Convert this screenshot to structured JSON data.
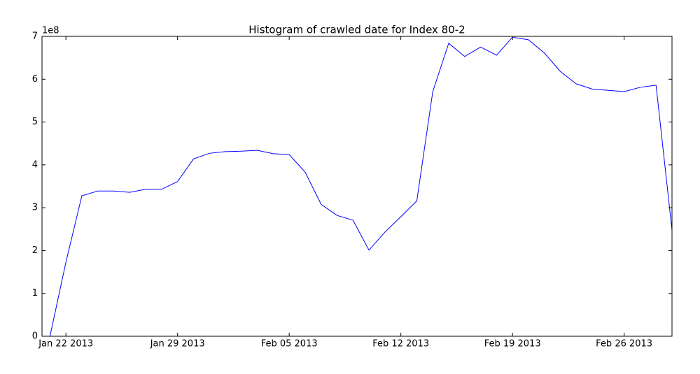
{
  "chart_data": {
    "type": "line",
    "title": "Histogram of crawled date for Index 80-2",
    "y_offset_label": "1e8",
    "x": [
      "2013-01-21",
      "2013-01-22",
      "2013-01-23",
      "2013-01-24",
      "2013-01-25",
      "2013-01-26",
      "2013-01-27",
      "2013-01-28",
      "2013-01-29",
      "2013-01-30",
      "2013-01-31",
      "2013-02-01",
      "2013-02-02",
      "2013-02-03",
      "2013-02-04",
      "2013-02-05",
      "2013-02-06",
      "2013-02-07",
      "2013-02-08",
      "2013-02-09",
      "2013-02-10",
      "2013-02-11",
      "2013-02-12",
      "2013-02-13",
      "2013-02-14",
      "2013-02-15",
      "2013-02-16",
      "2013-02-17",
      "2013-02-18",
      "2013-02-19",
      "2013-02-20",
      "2013-02-21",
      "2013-02-22",
      "2013-02-23",
      "2013-02-24",
      "2013-02-25",
      "2013-02-26",
      "2013-02-27",
      "2013-02-28",
      "2013-03-01"
    ],
    "series": [
      {
        "color": "#0000ff",
        "values": [
          0,
          1.73,
          3.28,
          3.39,
          3.39,
          3.36,
          3.43,
          3.43,
          3.61,
          4.14,
          4.27,
          4.31,
          4.32,
          4.34,
          4.26,
          4.24,
          3.83,
          3.08,
          2.82,
          2.71,
          2.01,
          2.43,
          2.79,
          3.16,
          5.71,
          6.84,
          6.53,
          6.75,
          6.56,
          6.98,
          6.92,
          6.61,
          6.18,
          5.89,
          5.77,
          5.74,
          5.71,
          5.81,
          5.86,
          2.48
        ]
      }
    ],
    "xlim": [
      "2013-01-20T12:00:00Z",
      "2013-03-01T00:00:00Z"
    ],
    "xticks": [
      {
        "value": "2013-01-22",
        "label": "Jan 22 2013"
      },
      {
        "value": "2013-01-29",
        "label": "Jan 29 2013"
      },
      {
        "value": "2013-02-05",
        "label": "Feb 05 2013"
      },
      {
        "value": "2013-02-12",
        "label": "Feb 12 2013"
      },
      {
        "value": "2013-02-19",
        "label": "Feb 19 2013"
      },
      {
        "value": "2013-02-26",
        "label": "Feb 26 2013"
      }
    ],
    "ylim": [
      0,
      7
    ],
    "yticks": [
      0,
      1,
      2,
      3,
      4,
      5,
      6,
      7
    ],
    "grid": false
  }
}
